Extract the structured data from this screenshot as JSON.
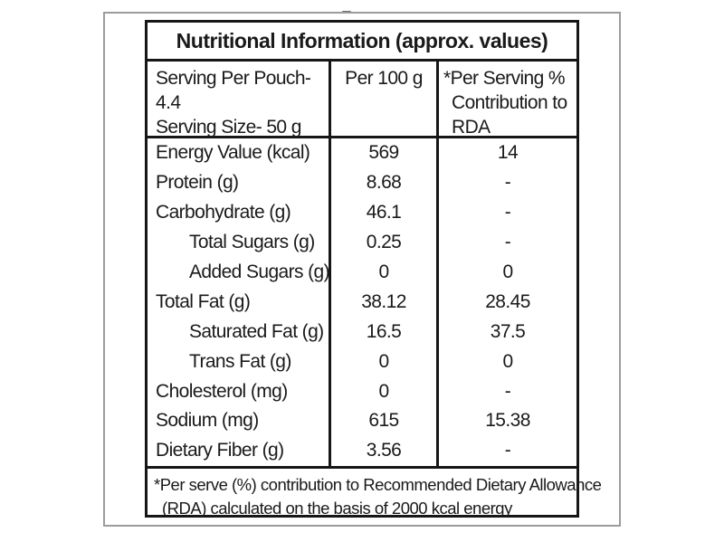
{
  "colors": {
    "background": "#ffffff",
    "table_border": "#161616",
    "panel_border": "#9c9c9c",
    "text": "#1a1a1a"
  },
  "table": {
    "title": "Nutritional Information (approx. values)",
    "header": {
      "serving_line1": "Serving Per Pouch- 4.4",
      "serving_line2": "Serving Size- 50 g",
      "per_100g": "Per 100 g",
      "per_serving_line1": "*Per Serving %",
      "per_serving_line2": "Contribution to",
      "per_serving_line3": "RDA"
    },
    "rows": [
      {
        "label": "Energy Value (kcal)",
        "indent": false,
        "per_100g": "569",
        "per_serving": "14"
      },
      {
        "label": "Protein (g)",
        "indent": false,
        "per_100g": "8.68",
        "per_serving": "-"
      },
      {
        "label": "Carbohydrate (g)",
        "indent": false,
        "per_100g": "46.1",
        "per_serving": "-"
      },
      {
        "label": "Total Sugars (g)",
        "indent": true,
        "per_100g": "0.25",
        "per_serving": "-"
      },
      {
        "label": "Added Sugars (g)",
        "indent": true,
        "per_100g": "0",
        "per_serving": "0"
      },
      {
        "label": "Total Fat (g)",
        "indent": false,
        "per_100g": "38.12",
        "per_serving": "28.45"
      },
      {
        "label": "Saturated Fat (g)",
        "indent": true,
        "per_100g": "16.5",
        "per_serving": "37.5"
      },
      {
        "label": "Trans Fat (g)",
        "indent": true,
        "per_100g": "0",
        "per_serving": "0"
      },
      {
        "label": "Cholesterol (mg)",
        "indent": false,
        "per_100g": "0",
        "per_serving": "-"
      },
      {
        "label": "Sodium (mg)",
        "indent": false,
        "per_100g": "615",
        "per_serving": "15.38"
      },
      {
        "label": "Dietary Fiber (g)",
        "indent": false,
        "per_100g": "3.56",
        "per_serving": "-"
      }
    ],
    "footnote_line1": "*Per serve (%) contribution to Recommended Dietary Allowance",
    "footnote_line2": "(RDA) calculated on the basis of 2000 kcal energy"
  }
}
